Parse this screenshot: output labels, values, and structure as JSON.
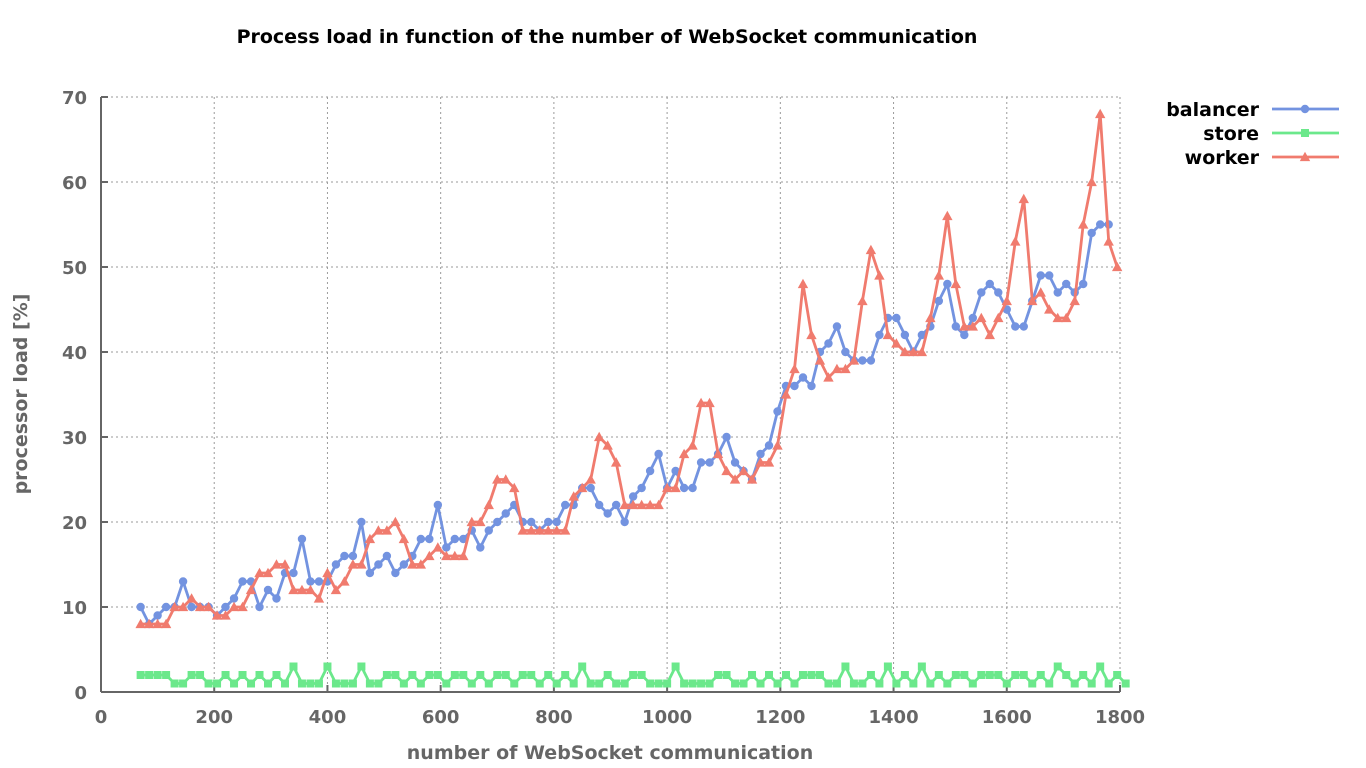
{
  "chart_data": {
    "type": "line",
    "title": "Process load in function of the number of WebSocket communication",
    "xlabel": "number of WebSocket communication",
    "ylabel": "processor load [%]",
    "xlim": [
      0,
      1800
    ],
    "ylim": [
      0,
      70
    ],
    "xticks": [
      0,
      200,
      400,
      600,
      800,
      1000,
      1200,
      1400,
      1600,
      1800
    ],
    "yticks": [
      0,
      10,
      20,
      30,
      40,
      50,
      60,
      70
    ],
    "grid": true,
    "legend": "top-right",
    "x_start": 70,
    "x_step": 15,
    "series": [
      {
        "name": "balancer",
        "color": "#7393e0",
        "marker": "circle",
        "values": [
          10,
          8,
          9,
          10,
          10,
          13,
          10,
          10,
          10,
          9,
          10,
          11,
          13,
          13,
          10,
          12,
          11,
          14,
          14,
          18,
          13,
          13,
          13,
          15,
          16,
          16,
          20,
          14,
          15,
          16,
          14,
          15,
          16,
          18,
          18,
          22,
          17,
          18,
          18,
          19,
          17,
          19,
          20,
          21,
          22,
          20,
          20,
          19,
          20,
          20,
          22,
          22,
          24,
          24,
          22,
          21,
          22,
          20,
          23,
          24,
          26,
          28,
          24,
          26,
          24,
          24,
          27,
          27,
          28,
          30,
          27,
          26,
          25,
          28,
          29,
          33,
          36,
          36,
          37,
          36,
          40,
          41,
          43,
          40,
          39,
          39,
          39,
          42,
          44,
          44,
          42,
          40,
          42,
          43,
          46,
          48,
          43,
          42,
          44,
          47,
          48,
          47,
          45,
          43,
          43,
          46,
          49,
          49,
          47,
          48,
          47,
          48,
          54,
          55,
          55
        ]
      },
      {
        "name": "store",
        "color": "#6be88b",
        "marker": "square",
        "values": [
          2,
          2,
          2,
          2,
          1,
          1,
          2,
          2,
          1,
          1,
          2,
          1,
          2,
          1,
          2,
          1,
          2,
          1,
          3,
          1,
          1,
          1,
          3,
          1,
          1,
          1,
          3,
          1,
          1,
          2,
          2,
          1,
          2,
          1,
          2,
          2,
          1,
          2,
          2,
          1,
          2,
          1,
          2,
          2,
          1,
          2,
          2,
          1,
          2,
          1,
          2,
          1,
          3,
          1,
          1,
          2,
          1,
          1,
          2,
          2,
          1,
          1,
          1,
          3,
          1,
          1,
          1,
          1,
          2,
          2,
          1,
          1,
          2,
          1,
          2,
          1,
          2,
          1,
          2,
          2,
          2,
          1,
          1,
          3,
          1,
          1,
          2,
          1,
          3,
          1,
          2,
          1,
          3,
          1,
          2,
          1,
          2,
          2,
          1,
          2,
          2,
          2,
          1,
          2,
          2,
          1,
          2,
          1,
          3,
          2,
          1,
          2,
          1,
          3,
          1,
          2,
          1
        ]
      },
      {
        "name": "worker",
        "color": "#f07b6e",
        "marker": "triangle",
        "values": [
          8,
          8,
          8,
          8,
          10,
          10,
          11,
          10,
          10,
          9,
          9,
          10,
          10,
          12,
          14,
          14,
          15,
          15,
          12,
          12,
          12,
          11,
          14,
          12,
          13,
          15,
          15,
          18,
          19,
          19,
          20,
          18,
          15,
          15,
          16,
          17,
          16,
          16,
          16,
          20,
          20,
          22,
          25,
          25,
          24,
          19,
          19,
          19,
          19,
          19,
          19,
          23,
          24,
          25,
          30,
          29,
          27,
          22,
          22,
          22,
          22,
          22,
          24,
          24,
          28,
          29,
          34,
          34,
          28,
          26,
          25,
          26,
          25,
          27,
          27,
          29,
          35,
          38,
          48,
          42,
          39,
          37,
          38,
          38,
          39,
          46,
          52,
          49,
          42,
          41,
          40,
          40,
          40,
          44,
          49,
          56,
          48,
          43,
          43,
          44,
          42,
          44,
          46,
          53,
          58,
          46,
          47,
          45,
          44,
          44,
          46,
          55,
          60,
          68,
          53,
          50
        ]
      }
    ]
  }
}
